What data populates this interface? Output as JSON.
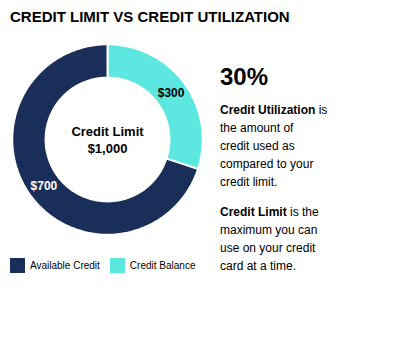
{
  "chart_data": {
    "type": "donut",
    "title": "CREDIT LIMIT VS CREDIT UTILIZATION",
    "categories": [
      "Available Credit",
      "Credit Balance"
    ],
    "values": [
      70,
      30
    ],
    "colors": [
      "#1a2e5a",
      "#5ce8e0"
    ],
    "legend": "lower left",
    "annotations": [
      {
        "text": "Credit Limit\n$1,000"
      },
      {
        "text": "$700",
        "category": "Available Credit"
      },
      {
        "text": "$300",
        "category": "Credit Balance"
      },
      {
        "text": "30%"
      },
      {
        "text": "Credit Utilization is\nthe amount of\ncredit used as\ncompared to your\ncredit limit.",
        "bold": "Credit Utilization"
      },
      {
        "text": "Credit Limit is the\nmaximum you can\nuse on your credit\ncard at a time.",
        "bold": "Credit Limit"
      }
    ]
  }
}
